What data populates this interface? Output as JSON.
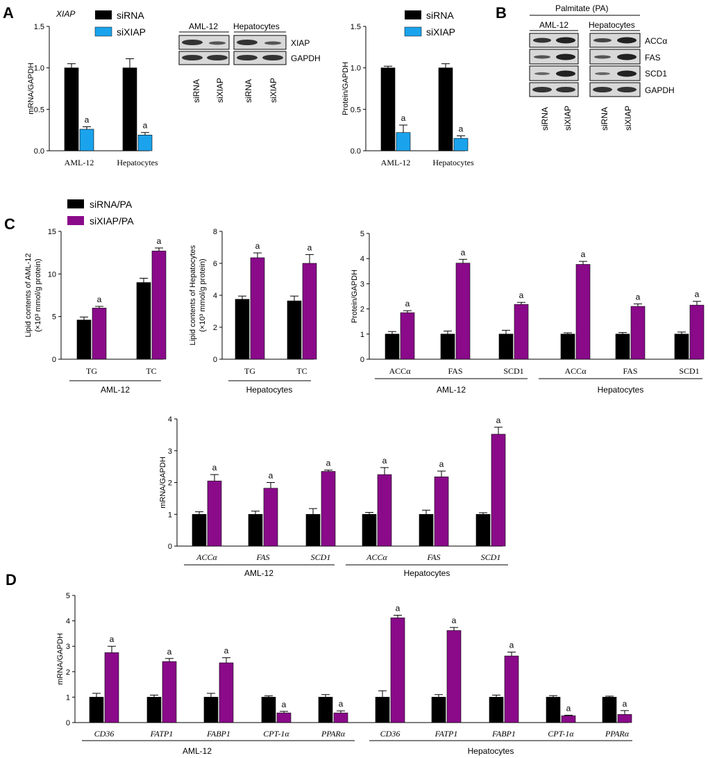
{
  "panel_labels": {
    "A": "A",
    "B": "B",
    "C": "C",
    "D": "D"
  },
  "colors": {
    "sirna": "#000000",
    "sixiap_blue": "#1aa3ec",
    "sixiap_purple": "#8a0a8a",
    "blot_bg": "#d8d8d8",
    "band": "#333333"
  },
  "legends": {
    "a": [
      {
        "label": "siRNA",
        "color": "#000000"
      },
      {
        "label": "siXIAP",
        "color": "#1aa3ec"
      }
    ],
    "a_protein": [
      {
        "label": "siRNA",
        "color": "#000000"
      },
      {
        "label": "siXIAP",
        "color": "#1aa3ec"
      }
    ],
    "c": [
      {
        "label": "siRNA/PA",
        "color": "#000000"
      },
      {
        "label": "siXIAP/PA",
        "color": "#8a0a8a"
      }
    ]
  },
  "blots": {
    "a": {
      "groups": [
        "AML-12",
        "Hepatocytes"
      ],
      "rows": [
        "XIAP",
        "GAPDH"
      ],
      "lanes": [
        "siRNA",
        "siXIAP",
        "siRNA",
        "siXIAP"
      ]
    },
    "b": {
      "title": "Palmitate (PA)",
      "groups": [
        "AML-12",
        "Hepatocytes"
      ],
      "rows": [
        "ACCα",
        "FAS",
        "SCD1",
        "GAPDH"
      ],
      "lanes": [
        "siRNA",
        "siXIAP",
        "siRNA",
        "siXIAP"
      ]
    }
  },
  "chart_data": [
    {
      "id": "a_mrna",
      "type": "bar",
      "title": "XIAP",
      "ylabel": "mRNA/GAPDH",
      "ylim": [
        0,
        1.5
      ],
      "yticks": [
        "0.0",
        "0.5",
        "1.0",
        "1.5"
      ],
      "categories": [
        "AML-12",
        "Hepatocytes"
      ],
      "series": [
        {
          "name": "siRNA",
          "values": [
            1.0,
            1.0
          ],
          "errors": [
            0.05,
            0.11
          ]
        },
        {
          "name": "siXIAP",
          "values": [
            0.26,
            0.19
          ],
          "errors": [
            0.03,
            0.03
          ]
        }
      ],
      "annotations": [
        "a",
        "a"
      ]
    },
    {
      "id": "a_protein",
      "type": "bar",
      "title": "",
      "ylabel": "Protein/GAPDH",
      "ylim": [
        0,
        1.5
      ],
      "yticks": [
        "0.0",
        "0.5",
        "1.0",
        "1.5"
      ],
      "categories": [
        "AML-12",
        "Hepatocytes"
      ],
      "series": [
        {
          "name": "siRNA",
          "values": [
            1.0,
            1.0
          ],
          "errors": [
            0.02,
            0.05
          ]
        },
        {
          "name": "siXIAP",
          "values": [
            0.22,
            0.15
          ],
          "errors": [
            0.09,
            0.03
          ]
        }
      ],
      "annotations": [
        "a",
        "a"
      ]
    },
    {
      "id": "c_lipid_aml",
      "type": "bar",
      "ylabel_lines": [
        "Lipid contents of AML-12",
        "(×10³ mmol/g protein)"
      ],
      "ylim": [
        0,
        15
      ],
      "yticks": [
        "0",
        "5",
        "10",
        "15"
      ],
      "categories": [
        "TG",
        "TC"
      ],
      "group_label": "AML-12",
      "series": [
        {
          "name": "siRNA/PA",
          "values": [
            4.6,
            9.0
          ],
          "errors": [
            0.35,
            0.5
          ]
        },
        {
          "name": "siXIAP/PA",
          "values": [
            6.0,
            12.7
          ],
          "errors": [
            0.2,
            0.35
          ]
        }
      ],
      "annotations": [
        "a",
        "a"
      ]
    },
    {
      "id": "c_lipid_hep",
      "type": "bar",
      "ylabel_lines": [
        "Lipid contents of Hepatocytes",
        "(×10³ mmol/g protein)"
      ],
      "ylim": [
        0,
        8
      ],
      "yticks": [
        "0",
        "2",
        "4",
        "6",
        "8"
      ],
      "categories": [
        "TG",
        "TC"
      ],
      "group_label": "Hepatocytes",
      "series": [
        {
          "name": "siRNA/PA",
          "values": [
            3.75,
            3.65
          ],
          "errors": [
            0.2,
            0.3
          ]
        },
        {
          "name": "siXIAP/PA",
          "values": [
            6.35,
            6.0
          ],
          "errors": [
            0.3,
            0.55
          ]
        }
      ],
      "annotations": [
        "a",
        "a"
      ]
    },
    {
      "id": "c_protein",
      "type": "bar",
      "ylabel": "Protein/GAPDH",
      "ylim": [
        0,
        5
      ],
      "yticks": [
        "0",
        "1",
        "2",
        "3",
        "4",
        "5"
      ],
      "categories": [
        "ACCα",
        "FAS",
        "SCD1",
        "ACCα",
        "FAS",
        "SCD1"
      ],
      "groups": [
        "AML-12",
        "Hepatocytes"
      ],
      "series": [
        {
          "name": "siRNA/PA",
          "values": [
            1.0,
            1.0,
            1.0,
            1.0,
            1.0,
            1.0
          ],
          "errors": [
            0.1,
            0.12,
            0.15,
            0.05,
            0.06,
            0.08
          ]
        },
        {
          "name": "siXIAP/PA",
          "values": [
            1.85,
            3.82,
            2.18,
            3.77,
            2.1,
            2.15
          ],
          "errors": [
            0.08,
            0.15,
            0.08,
            0.12,
            0.1,
            0.15
          ]
        }
      ],
      "annotations": [
        "a",
        "a",
        "a",
        "a",
        "a",
        "a"
      ]
    },
    {
      "id": "c_mrna",
      "type": "bar",
      "ylabel": "mRNA/GAPDH",
      "ylim": [
        0,
        4
      ],
      "yticks": [
        "0",
        "1",
        "2",
        "3",
        "4"
      ],
      "categories": [
        "ACCα",
        "FAS",
        "SCD1",
        "ACCα",
        "FAS",
        "SCD1"
      ],
      "groups": [
        "AML-12",
        "Hepatocytes"
      ],
      "series": [
        {
          "name": "siRNA/PA",
          "values": [
            1.0,
            1.0,
            1.0,
            1.0,
            1.0,
            1.0
          ],
          "errors": [
            0.08,
            0.1,
            0.18,
            0.06,
            0.13,
            0.05
          ]
        },
        {
          "name": "siXIAP/PA",
          "values": [
            2.05,
            1.82,
            2.35,
            2.25,
            2.18,
            3.52
          ],
          "errors": [
            0.2,
            0.18,
            0.04,
            0.22,
            0.18,
            0.22
          ]
        }
      ],
      "annotations": [
        "a",
        "a",
        "a",
        "a",
        "a",
        "a"
      ]
    },
    {
      "id": "d_mrna",
      "type": "bar",
      "ylabel": "mRNA/GAPDH",
      "ylim": [
        0,
        5
      ],
      "yticks": [
        "0",
        "1",
        "2",
        "3",
        "4",
        "5"
      ],
      "categories": [
        "CD36",
        "FATP1",
        "FABP1",
        "CPT-1α",
        "PPARα",
        "CD36",
        "FATP1",
        "FABP1",
        "CPT-1α",
        "PPARα"
      ],
      "groups": [
        "AML-12",
        "Hepatocytes"
      ],
      "series": [
        {
          "name": "siRNA/PA",
          "values": [
            1.0,
            1.0,
            1.0,
            1.0,
            1.0,
            1.0,
            1.0,
            1.0,
            1.0,
            1.0
          ],
          "errors": [
            0.15,
            0.08,
            0.15,
            0.05,
            0.1,
            0.25,
            0.1,
            0.08,
            0.06,
            0.04
          ]
        },
        {
          "name": "siXIAP/PA",
          "values": [
            2.75,
            2.4,
            2.35,
            0.38,
            0.38,
            4.12,
            3.62,
            2.62,
            0.27,
            0.32
          ],
          "errors": [
            0.25,
            0.12,
            0.2,
            0.06,
            0.08,
            0.1,
            0.12,
            0.15,
            0.02,
            0.15
          ]
        }
      ],
      "annotations": [
        "a",
        "a",
        "a",
        "a",
        "a",
        "a",
        "a",
        "a",
        "a",
        "a"
      ]
    }
  ]
}
